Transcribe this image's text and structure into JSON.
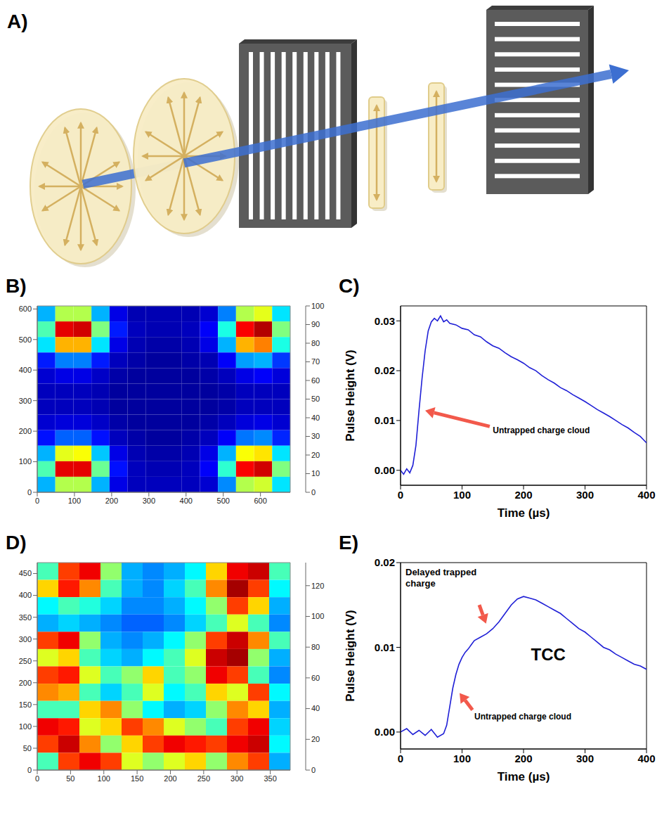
{
  "diagram": {
    "panel": "A)"
  },
  "chart_data": [
    {
      "type": "heatmap",
      "panel": "B)",
      "xlim": [
        0,
        680
      ],
      "xticks": [
        0,
        100,
        200,
        300,
        400,
        500,
        600
      ],
      "ylim": [
        0,
        610
      ],
      "yticks": [
        0,
        100,
        200,
        300,
        400,
        500,
        600
      ],
      "cells": [
        [
          30,
          55,
          55,
          30,
          10,
          5,
          5,
          5,
          5,
          8,
          25,
          55,
          60,
          35
        ],
        [
          45,
          90,
          92,
          50,
          15,
          6,
          5,
          5,
          6,
          12,
          40,
          88,
          95,
          50
        ],
        [
          35,
          70,
          70,
          35,
          10,
          5,
          4,
          4,
          5,
          10,
          30,
          70,
          75,
          40
        ],
        [
          15,
          25,
          25,
          15,
          6,
          4,
          3,
          3,
          4,
          5,
          12,
          28,
          30,
          18
        ],
        [
          8,
          10,
          10,
          7,
          4,
          3,
          3,
          3,
          3,
          4,
          6,
          10,
          12,
          9
        ],
        [
          6,
          6,
          6,
          5,
          3,
          3,
          3,
          3,
          3,
          3,
          4,
          6,
          6,
          6
        ],
        [
          6,
          6,
          6,
          5,
          3,
          3,
          3,
          3,
          3,
          3,
          4,
          6,
          6,
          6
        ],
        [
          8,
          9,
          9,
          7,
          4,
          3,
          3,
          3,
          3,
          4,
          6,
          9,
          10,
          8
        ],
        [
          14,
          22,
          22,
          14,
          6,
          4,
          3,
          3,
          4,
          6,
          12,
          24,
          26,
          16
        ],
        [
          30,
          60,
          62,
          32,
          10,
          5,
          4,
          4,
          5,
          10,
          30,
          62,
          65,
          35
        ],
        [
          45,
          90,
          90,
          48,
          14,
          6,
          5,
          5,
          6,
          12,
          42,
          88,
          92,
          50
        ],
        [
          30,
          55,
          55,
          30,
          10,
          6,
          6,
          6,
          6,
          8,
          26,
          55,
          58,
          35
        ]
      ],
      "colorbar": {
        "range": [
          0,
          100
        ],
        "ticks": [
          0,
          10,
          20,
          30,
          40,
          50,
          60,
          70,
          80,
          90,
          100
        ]
      }
    },
    {
      "type": "line",
      "panel": "C)",
      "x_label": "Time (µs)",
      "y_label": "Pulse Height (V)",
      "color": "#1f1fd6",
      "xlim": [
        0,
        400
      ],
      "xticks": [
        0,
        100,
        200,
        300,
        400
      ],
      "ylim": [
        -0.003,
        0.033
      ],
      "yticks": [
        {
          "value": 0,
          "label": "0.00"
        },
        0.01,
        0.02,
        0.03
      ],
      "x": [
        0,
        5,
        10,
        15,
        20,
        25,
        30,
        35,
        40,
        45,
        50,
        55,
        60,
        65,
        70,
        75,
        80,
        90,
        100,
        110,
        120,
        130,
        140,
        150,
        160,
        170,
        180,
        190,
        200,
        210,
        220,
        230,
        240,
        250,
        260,
        270,
        280,
        290,
        300,
        310,
        320,
        330,
        340,
        350,
        360,
        370,
        380,
        390,
        400
      ],
      "values": [
        0.0,
        -0.0008,
        0.0003,
        -0.0005,
        0.001,
        0.005,
        0.012,
        0.0185,
        0.024,
        0.028,
        0.0298,
        0.0305,
        0.03,
        0.031,
        0.0298,
        0.0302,
        0.0295,
        0.0292,
        0.0285,
        0.0282,
        0.0272,
        0.0268,
        0.0258,
        0.025,
        0.0245,
        0.0236,
        0.0228,
        0.0222,
        0.0215,
        0.0206,
        0.02,
        0.019,
        0.0182,
        0.0175,
        0.0166,
        0.016,
        0.0152,
        0.0145,
        0.0138,
        0.013,
        0.0122,
        0.0115,
        0.0108,
        0.01,
        0.0092,
        0.0085,
        0.0076,
        0.0068,
        0.0055
      ],
      "annotations": [
        "Untrapped charge cloud"
      ]
    },
    {
      "type": "heatmap",
      "panel": "D)",
      "xlim": [
        0,
        380
      ],
      "xticks": [
        0,
        50,
        100,
        150,
        200,
        250,
        300,
        350
      ],
      "ylim": [
        0,
        475
      ],
      "yticks": [
        0,
        50,
        100,
        150,
        200,
        250,
        300,
        350,
        400,
        450
      ],
      "cells": [
        [
          60,
          110,
          120,
          70,
          40,
          35,
          40,
          50,
          90,
          120,
          125,
          60
        ],
        [
          90,
          115,
          100,
          60,
          40,
          35,
          45,
          60,
          100,
          130,
          110,
          50
        ],
        [
          50,
          60,
          55,
          45,
          35,
          35,
          40,
          50,
          70,
          110,
          90,
          40
        ],
        [
          40,
          45,
          40,
          35,
          30,
          30,
          35,
          45,
          60,
          80,
          60,
          35
        ],
        [
          110,
          120,
          70,
          40,
          35,
          40,
          50,
          70,
          110,
          125,
          100,
          60
        ],
        [
          80,
          90,
          60,
          45,
          40,
          50,
          60,
          80,
          125,
          130,
          70,
          40
        ],
        [
          110,
          115,
          80,
          60,
          70,
          90,
          60,
          70,
          120,
          110,
          60,
          35
        ],
        [
          100,
          95,
          60,
          45,
          60,
          80,
          50,
          60,
          90,
          80,
          110,
          50
        ],
        [
          60,
          60,
          90,
          100,
          70,
          50,
          40,
          45,
          70,
          100,
          90,
          40
        ],
        [
          120,
          115,
          80,
          90,
          110,
          100,
          80,
          70,
          60,
          110,
          120,
          45
        ],
        [
          110,
          125,
          100,
          70,
          90,
          110,
          120,
          115,
          110,
          120,
          125,
          50
        ],
        [
          60,
          110,
          120,
          110,
          80,
          70,
          80,
          90,
          70,
          100,
          110,
          40
        ]
      ],
      "colorbar": {
        "range": [
          0,
          135
        ],
        "ticks": [
          0,
          20,
          40,
          60,
          80,
          100,
          120
        ]
      }
    },
    {
      "type": "line",
      "panel": "E)",
      "x_label": "Time (µs)",
      "y_label": "Pulse Height (V)",
      "color": "#1f1fd6",
      "xlim": [
        0,
        400
      ],
      "xticks": [
        0,
        100,
        200,
        300,
        400
      ],
      "ylim": [
        -0.002,
        0.02
      ],
      "yticks": [
        {
          "value": 0,
          "label": "0.00"
        },
        0.01,
        0.02
      ],
      "x": [
        0,
        10,
        20,
        30,
        40,
        50,
        60,
        70,
        75,
        80,
        85,
        90,
        95,
        100,
        105,
        110,
        115,
        120,
        130,
        140,
        150,
        160,
        170,
        180,
        190,
        200,
        210,
        220,
        230,
        240,
        250,
        260,
        270,
        280,
        290,
        300,
        310,
        320,
        330,
        340,
        350,
        360,
        370,
        380,
        390,
        400
      ],
      "values": [
        0.0,
        0.0004,
        -0.0003,
        0.0002,
        -0.0004,
        0.0003,
        -0.0006,
        -0.0002,
        0.0008,
        0.003,
        0.0052,
        0.0068,
        0.008,
        0.0088,
        0.0094,
        0.0098,
        0.0103,
        0.0108,
        0.0112,
        0.0116,
        0.0122,
        0.013,
        0.014,
        0.015,
        0.0157,
        0.016,
        0.0158,
        0.0156,
        0.0152,
        0.0148,
        0.0144,
        0.014,
        0.0134,
        0.0128,
        0.0122,
        0.0118,
        0.0112,
        0.0106,
        0.01,
        0.0097,
        0.0092,
        0.0088,
        0.0084,
        0.008,
        0.0078,
        0.0074
      ],
      "annotations": [
        "Delayed trapped charge",
        "Untrapped charge cloud",
        "TCC"
      ]
    }
  ]
}
